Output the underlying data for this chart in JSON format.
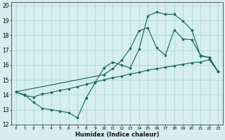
{
  "xlabel": "Humidex (Indice chaleur)",
  "xlim": [
    -0.5,
    23.5
  ],
  "ylim": [
    12,
    20.2
  ],
  "yticks": [
    12,
    13,
    14,
    15,
    16,
    17,
    18,
    19,
    20
  ],
  "xtick_labels": [
    "0",
    "1",
    "2",
    "3",
    "4",
    "5",
    "6",
    "7",
    "8",
    "9",
    "10",
    "11",
    "12",
    "13",
    "14",
    "15",
    "16",
    "17",
    "18",
    "19",
    "20",
    "21",
    "22",
    "23"
  ],
  "background_color": "#d6eef0",
  "grid_color": "#b0d8d0",
  "line_color": "#1a6b5a",
  "line1_x": [
    0,
    1,
    2,
    3,
    4,
    5,
    6,
    7,
    8,
    9,
    10,
    11,
    12,
    13,
    14,
    15,
    16,
    17,
    18,
    19,
    20,
    21,
    22,
    23
  ],
  "line1_y": [
    14.2,
    14.0,
    13.5,
    13.1,
    13.0,
    12.9,
    12.8,
    12.45,
    13.8,
    14.8,
    15.8,
    16.2,
    16.0,
    15.8,
    17.05,
    19.3,
    19.55,
    19.4,
    19.4,
    18.95,
    18.35,
    16.6,
    16.5,
    15.55
  ],
  "line2_x": [
    0,
    1,
    2,
    3,
    4,
    5,
    6,
    7,
    8,
    9,
    10,
    11,
    12,
    13,
    14,
    15,
    16,
    17,
    18,
    19,
    20,
    21,
    22,
    23
  ],
  "line2_y": [
    14.2,
    13.95,
    13.85,
    14.05,
    14.15,
    14.3,
    14.4,
    14.55,
    14.7,
    14.85,
    15.0,
    15.15,
    15.25,
    15.4,
    15.5,
    15.65,
    15.75,
    15.85,
    15.95,
    16.05,
    16.15,
    16.2,
    16.35,
    15.55
  ],
  "line3_x": [
    0,
    10,
    11,
    12,
    13,
    14,
    15,
    16,
    17,
    18,
    19,
    20,
    21,
    22,
    23
  ],
  "line3_y": [
    14.2,
    15.35,
    15.75,
    16.3,
    17.1,
    18.3,
    18.5,
    17.15,
    16.65,
    18.35,
    17.75,
    17.7,
    16.65,
    16.5,
    15.55
  ]
}
